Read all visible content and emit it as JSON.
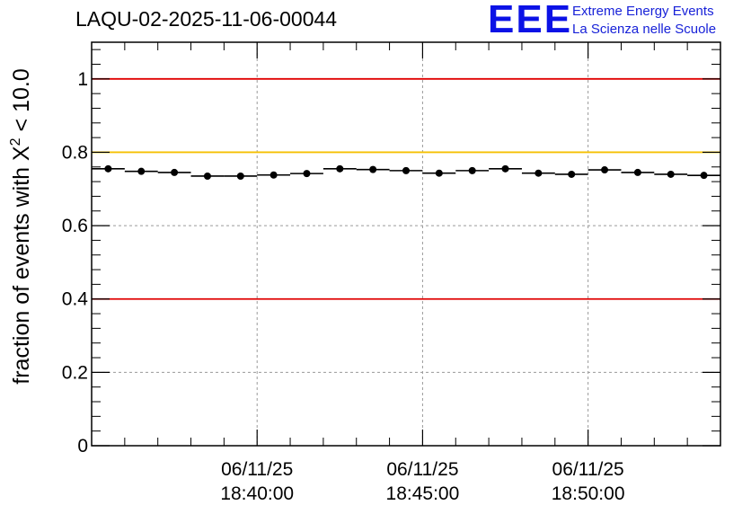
{
  "header": {
    "title": "LAQU-02-2025-11-06-00044"
  },
  "logo": {
    "mark": "EEE",
    "line1": "Extreme Energy Events",
    "line2": "La Scienza nelle Scuole"
  },
  "chart_data": {
    "type": "scatter",
    "title": "LAQU-02-2025-11-06-00044",
    "xlabel": "",
    "ylabel_prefix": "fraction of events with ",
    "ylabel_symbol": "X",
    "ylabel_superscript": "2",
    "ylabel_suffix": " < 10.0",
    "x_unit": "minutes after 18:35:00",
    "xlim": [
      0,
      19
    ],
    "ylim": [
      0,
      1.1
    ],
    "grid": true,
    "x_ticks": [
      {
        "x": 5,
        "date": "06/11/25",
        "time": "18:40:00"
      },
      {
        "x": 10,
        "date": "06/11/25",
        "time": "18:45:00"
      },
      {
        "x": 15,
        "date": "06/11/25",
        "time": "18:50:00"
      }
    ],
    "y_ticks": [
      {
        "value": 0,
        "label": "0"
      },
      {
        "value": 0.2,
        "label": "0.2"
      },
      {
        "value": 0.4,
        "label": "0.4"
      },
      {
        "value": 0.6,
        "label": "0.6"
      },
      {
        "value": 0.8,
        "label": "0.8"
      },
      {
        "value": 1,
        "label": "1"
      }
    ],
    "reference_lines": [
      {
        "y": 1.0,
        "color": "#e00000"
      },
      {
        "y": 0.8,
        "color": "#f5c000"
      },
      {
        "y": 0.4,
        "color": "#e00000"
      }
    ],
    "bin_width": 1,
    "series": [
      {
        "name": "fraction",
        "x": [
          0.5,
          1.5,
          2.5,
          3.5,
          4.5,
          5.5,
          6.5,
          7.5,
          8.5,
          9.5,
          10.5,
          11.5,
          12.5,
          13.5,
          14.5,
          15.5,
          16.5,
          17.5,
          18.5
        ],
        "y": [
          0.755,
          0.748,
          0.745,
          0.735,
          0.735,
          0.738,
          0.742,
          0.755,
          0.753,
          0.75,
          0.743,
          0.75,
          0.755,
          0.743,
          0.74,
          0.752,
          0.745,
          0.74,
          0.737
        ]
      }
    ]
  }
}
